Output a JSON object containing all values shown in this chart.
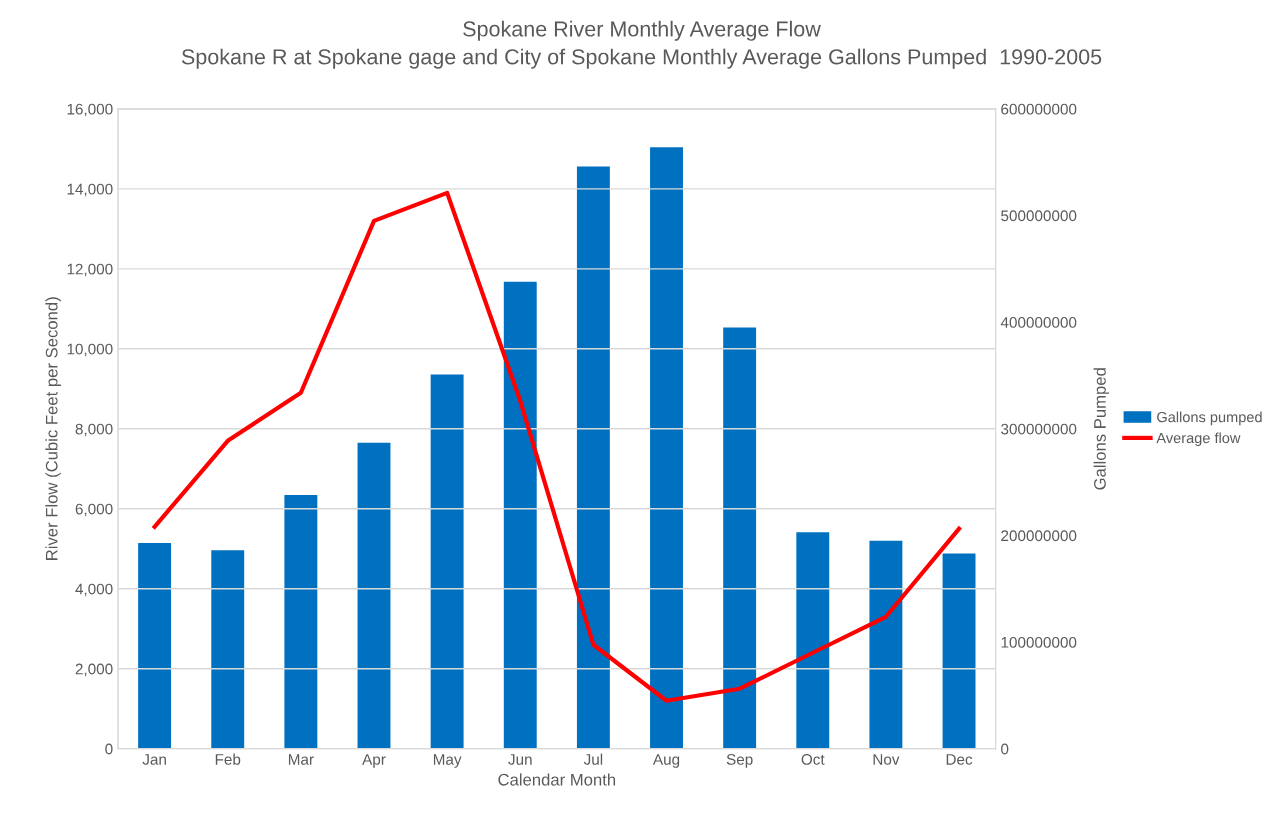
{
  "chart_data": {
    "type": "bar",
    "title": "Spokane River Monthly Average Flow",
    "subtitle": "Spokane R at Spokane gage and City of Spokane Monthly Average Gallons Pumped  1990-2005",
    "xlabel": "Calendar Month",
    "ylabel": "River Flow (Cubic Feet per Second)",
    "y2label": "Gallons Pumped",
    "categories": [
      "Jan",
      "Feb",
      "Mar",
      "Apr",
      "May",
      "Jun",
      "Jul",
      "Aug",
      "Sep",
      "Oct",
      "Nov",
      "Dec"
    ],
    "series": [
      {
        "name": "Gallons pumped",
        "axis": "y2",
        "color": "#0070c0",
        "values": [
          193000000,
          186000000,
          238000000,
          287000000,
          351000000,
          438000000,
          546000000,
          564000000,
          395000000,
          203000000,
          195000000,
          183000000
        ]
      },
      {
        "name": "Average flow",
        "type": "line",
        "axis": "y",
        "color": "#ff0000",
        "values": [
          5550,
          7700,
          8900,
          13200,
          13900,
          8700,
          2600,
          1200,
          1500,
          2400,
          3300,
          5500
        ]
      }
    ],
    "ylim": [
      0,
      16000
    ],
    "yticks": [
      {
        "value": 0,
        "label": "0"
      },
      {
        "value": 2000,
        "label": "2,000"
      },
      {
        "value": 4000,
        "label": "4,000"
      },
      {
        "value": 6000,
        "label": "6,000"
      },
      {
        "value": 8000,
        "label": "8,000"
      },
      {
        "value": 10000,
        "label": "10,000"
      },
      {
        "value": 12000,
        "label": "12,000"
      },
      {
        "value": 14000,
        "label": "14,000"
      },
      {
        "value": 16000,
        "label": "16,000"
      }
    ],
    "y2lim": [
      0,
      600000000
    ],
    "y2ticks": [
      0,
      100000000,
      200000000,
      300000000,
      400000000,
      500000000,
      600000000
    ],
    "grid": "y",
    "legend": "right",
    "marker": "none",
    "line_style": "solid"
  }
}
